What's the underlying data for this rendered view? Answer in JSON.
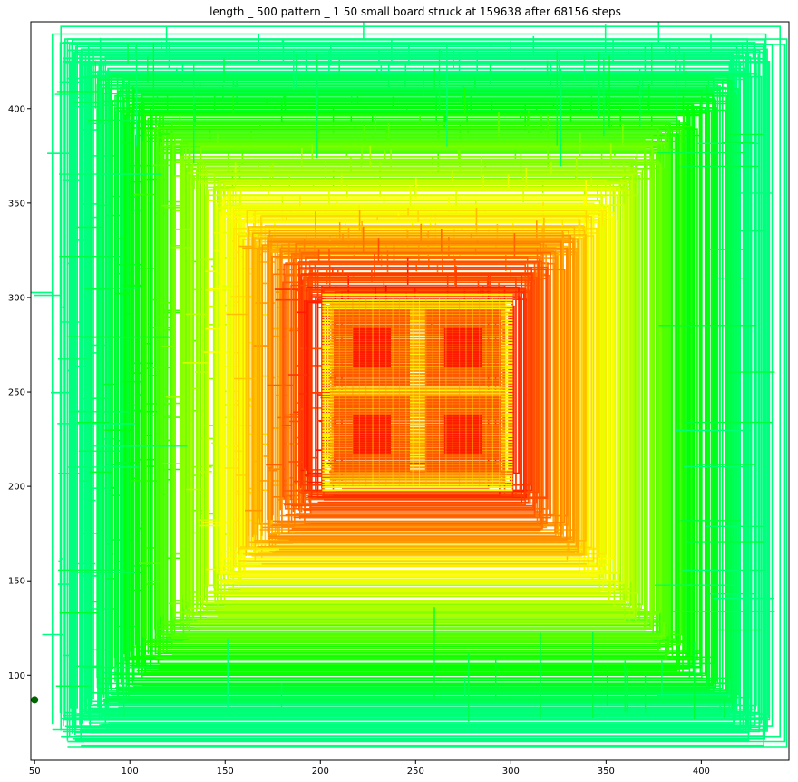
{
  "chart_data": {
    "type": "line",
    "title": "length _ 500 pattern _ 1 50 small board struck at 159638 after 68156 steps",
    "xlabel": "",
    "ylabel": "",
    "xlim": [
      48,
      446
    ],
    "ylim": [
      55,
      446
    ],
    "x_ticks": [
      50,
      100,
      150,
      200,
      250,
      300,
      350,
      400
    ],
    "y_ticks": [
      100,
      150,
      200,
      250,
      300,
      350,
      400
    ],
    "grid": false,
    "legend": "none",
    "start_marker": {
      "x": 50,
      "y": 87,
      "color": "#006400"
    },
    "colormap": [
      "#ff0000",
      "#ff7f00",
      "#ffff00",
      "#7fff00",
      "#00ff00",
      "#00ff7f"
    ],
    "path_colormap": "red at the board center shading through orange and yellow to green on the outer passes",
    "centers": [
      [
        227,
        228
      ],
      [
        275,
        228
      ],
      [
        227,
        274
      ],
      [
        275,
        274
      ]
    ]
  }
}
